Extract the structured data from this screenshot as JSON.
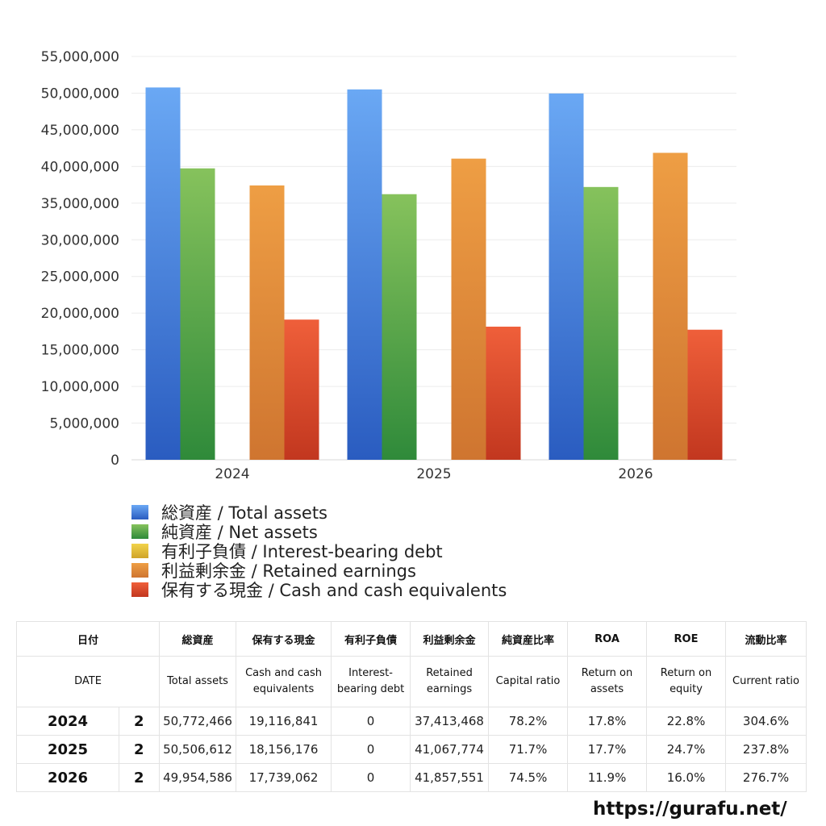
{
  "chart_data": {
    "type": "bar",
    "categories": [
      "2024",
      "2025",
      "2026"
    ],
    "ylim": [
      0,
      55000000
    ],
    "ytick_labels": [
      "0",
      "5,000,000",
      "10,000,000",
      "15,000,000",
      "20,000,000",
      "25,000,000",
      "30,000,000",
      "35,000,000",
      "40,000,000",
      "45,000,000",
      "50,000,000",
      "55,000,000"
    ],
    "grid": true,
    "legend_position": "bottom",
    "series": [
      {
        "name": "総資産 / Total assets",
        "values": [
          50772466,
          50506612,
          49954586
        ],
        "color_top": "#6aa8f4",
        "color_bottom": "#2a5cc0"
      },
      {
        "name": "純資産 / Net assets",
        "values": [
          39740000,
          36220000,
          37200000
        ],
        "color_top": "#86c25c",
        "color_bottom": "#2f8a3a"
      },
      {
        "name": "有利子負債 / Interest-bearing debt",
        "values": [
          0,
          0,
          0
        ],
        "color_top": "#f2d34a",
        "color_bottom": "#cfa42a"
      },
      {
        "name": "利益剰余金 / Retained earnings",
        "values": [
          37413468,
          41067774,
          41857551
        ],
        "color_top": "#ee9e44",
        "color_bottom": "#cf7530"
      },
      {
        "name": "保有する現金 /  Cash and cash equivalents",
        "values": [
          19116841,
          18156176,
          17739062
        ],
        "color_top": "#ef5f3a",
        "color_bottom": "#c2371f"
      }
    ]
  },
  "table": {
    "header_jp": [
      "日付",
      "",
      "総資産",
      "保有する現金",
      "有利子負債",
      "利益剰余金",
      "純資産比率",
      "ROA",
      "ROE",
      "流動比率"
    ],
    "header_en": [
      "DATE",
      "",
      "Total assets",
      "Cash and cash equivalents",
      "Interest-bearing debt",
      "Retained earnings",
      "Capital ratio",
      "Return on assets",
      "Return on equity",
      "Current ratio"
    ],
    "rows": [
      [
        "2024",
        "2",
        "50,772,466",
        "19,116,841",
        "0",
        "37,413,468",
        "78.2%",
        "17.8%",
        "22.8%",
        "304.6%"
      ],
      [
        "2025",
        "2",
        "50,506,612",
        "18,156,176",
        "0",
        "41,067,774",
        "71.7%",
        "17.7%",
        "24.7%",
        "237.8%"
      ],
      [
        "2026",
        "2",
        "49,954,586",
        "17,739,062",
        "0",
        "41,857,551",
        "74.5%",
        "11.9%",
        "16.0%",
        "276.7%"
      ]
    ]
  },
  "source": "https://gurafu.net/"
}
